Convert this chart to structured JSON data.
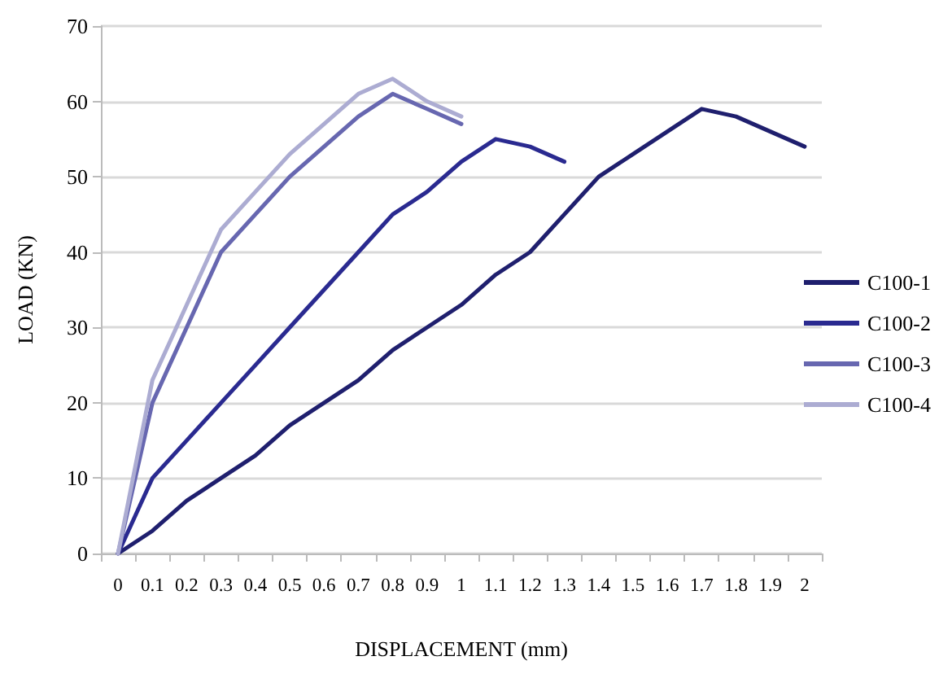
{
  "chart_data": {
    "type": "line",
    "xlabel": "DISPLACEMENT (mm)",
    "ylabel": "LOAD (KN)",
    "categories": [
      "0",
      "0.1",
      "0.2",
      "0.3",
      "0.4",
      "0.5",
      "0.6",
      "0.7",
      "0.8",
      "0.9",
      "1",
      "1.1",
      "1.2",
      "1.3",
      "1.4",
      "1.5",
      "1.6",
      "1.7",
      "1.8",
      "1.9",
      "2"
    ],
    "series": [
      {
        "name": "C100-1",
        "color": "#1f1f6e",
        "values": [
          0,
          3,
          7,
          10,
          13,
          17,
          20,
          23,
          27,
          30,
          33,
          37,
          40,
          45,
          50,
          53,
          56,
          59,
          58,
          56,
          54
        ]
      },
      {
        "name": "C100-2",
        "color": "#2a2a90",
        "values": [
          0,
          10,
          15,
          20,
          25,
          30,
          35,
          40,
          45,
          48,
          52,
          55,
          54,
          52,
          null,
          null,
          null,
          null,
          null,
          null,
          null
        ]
      },
      {
        "name": "C100-3",
        "color": "#6767b0",
        "values": [
          0,
          20,
          30,
          40,
          45,
          50,
          54,
          58,
          61,
          59,
          57,
          null,
          null,
          null,
          null,
          null,
          null,
          null,
          null,
          null,
          null
        ]
      },
      {
        "name": "C100-4",
        "color": "#acacd2",
        "values": [
          0,
          23,
          33,
          43,
          48,
          53,
          57,
          61,
          63,
          60,
          58,
          null,
          null,
          null,
          null,
          null,
          null,
          null,
          null,
          null,
          null
        ]
      }
    ],
    "ylim": [
      0,
      70
    ],
    "yticks": [
      0,
      10,
      20,
      30,
      40,
      50,
      60,
      70
    ],
    "grid": "y",
    "legend": "right",
    "marker": "none",
    "line_style": "solid"
  }
}
